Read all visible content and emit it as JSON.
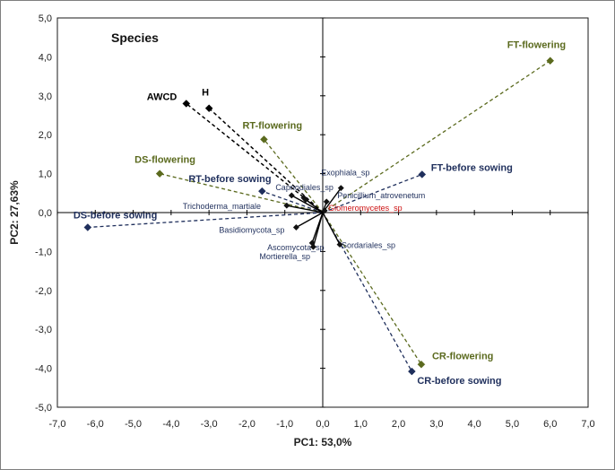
{
  "chart_data": {
    "type": "scatter",
    "title": "Species",
    "xlabel": "PC1: 53,0%",
    "ylabel": "PC2: 27,63%",
    "xlim": [
      -7,
      7
    ],
    "ylim": [
      -5,
      5
    ],
    "xticks": [
      "-7,0",
      "-6,0",
      "-5,0",
      "-4,0",
      "-3,0",
      "-2,0",
      "-1,0",
      "0,0",
      "1,0",
      "2,0",
      "3,0",
      "4,0",
      "5,0",
      "6,0",
      "7,0"
    ],
    "yticks": [
      "-5,0",
      "-4,0",
      "-3,0",
      "-2,0",
      "-1,0",
      "0,0",
      "1,0",
      "2,0",
      "3,0",
      "4,0",
      "5,0"
    ],
    "colors": {
      "green": "#5b6a1e",
      "navy": "#1f2f5c",
      "black": "#000000",
      "red": "#cc1111"
    },
    "treatment_vectors": [
      {
        "name": "FT-flowering",
        "x": 6.0,
        "y": 3.9,
        "color": "green"
      },
      {
        "name": "FT-before sowing",
        "x": 2.62,
        "y": 0.98,
        "color": "navy"
      },
      {
        "name": "RT-flowering",
        "x": -1.55,
        "y": 1.88,
        "color": "green"
      },
      {
        "name": "RT-before sowing",
        "x": -1.6,
        "y": 0.55,
        "color": "navy"
      },
      {
        "name": "DS-flowering",
        "x": -4.3,
        "y": 1.0,
        "color": "green"
      },
      {
        "name": "DS-before sowing",
        "x": -6.2,
        "y": -0.38,
        "color": "navy"
      },
      {
        "name": "CR-flowering",
        "x": 2.6,
        "y": -3.9,
        "color": "green"
      },
      {
        "name": "CR-before sowing",
        "x": 2.35,
        "y": -4.08,
        "color": "navy"
      }
    ],
    "trait_vectors": [
      {
        "name": "AWCD",
        "x": -3.6,
        "y": 2.8
      },
      {
        "name": "H",
        "x": -3.0,
        "y": 2.68
      }
    ],
    "species": [
      {
        "name": "Exophiala_sp",
        "x": 0.48,
        "y": 0.63,
        "color": "navy"
      },
      {
        "name": "Penicillium_atrovenetum",
        "x": 0.1,
        "y": 0.28,
        "color": "navy"
      },
      {
        "name": "Capnodiales_sp",
        "x": -0.82,
        "y": 0.44,
        "color": "navy"
      },
      {
        "name": "Trichoderma_martiale",
        "x": -0.95,
        "y": 0.18,
        "color": "navy"
      },
      {
        "name": "Glomeromycetes_sp",
        "x": 0.05,
        "y": 0.05,
        "color": "red"
      },
      {
        "name": "Basidiomycota_sp",
        "x": -0.7,
        "y": -0.38,
        "color": "navy"
      },
      {
        "name": "Ascomycota_sp",
        "x": -0.28,
        "y": -0.78,
        "color": "navy"
      },
      {
        "name": "Mortierella_sp",
        "x": -0.25,
        "y": -0.88,
        "color": "navy"
      },
      {
        "name": "Sordariales_sp",
        "x": 0.45,
        "y": -0.82,
        "color": "navy"
      }
    ],
    "unlabeled_species": [
      {
        "x": -0.5,
        "y": 0.38
      },
      {
        "x": -0.45,
        "y": 0.33
      }
    ],
    "trait_labels": {
      "AWCD": {
        "dx": -44,
        "dy": -4
      },
      "H": {
        "dx": -8,
        "dy": -14
      }
    }
  }
}
